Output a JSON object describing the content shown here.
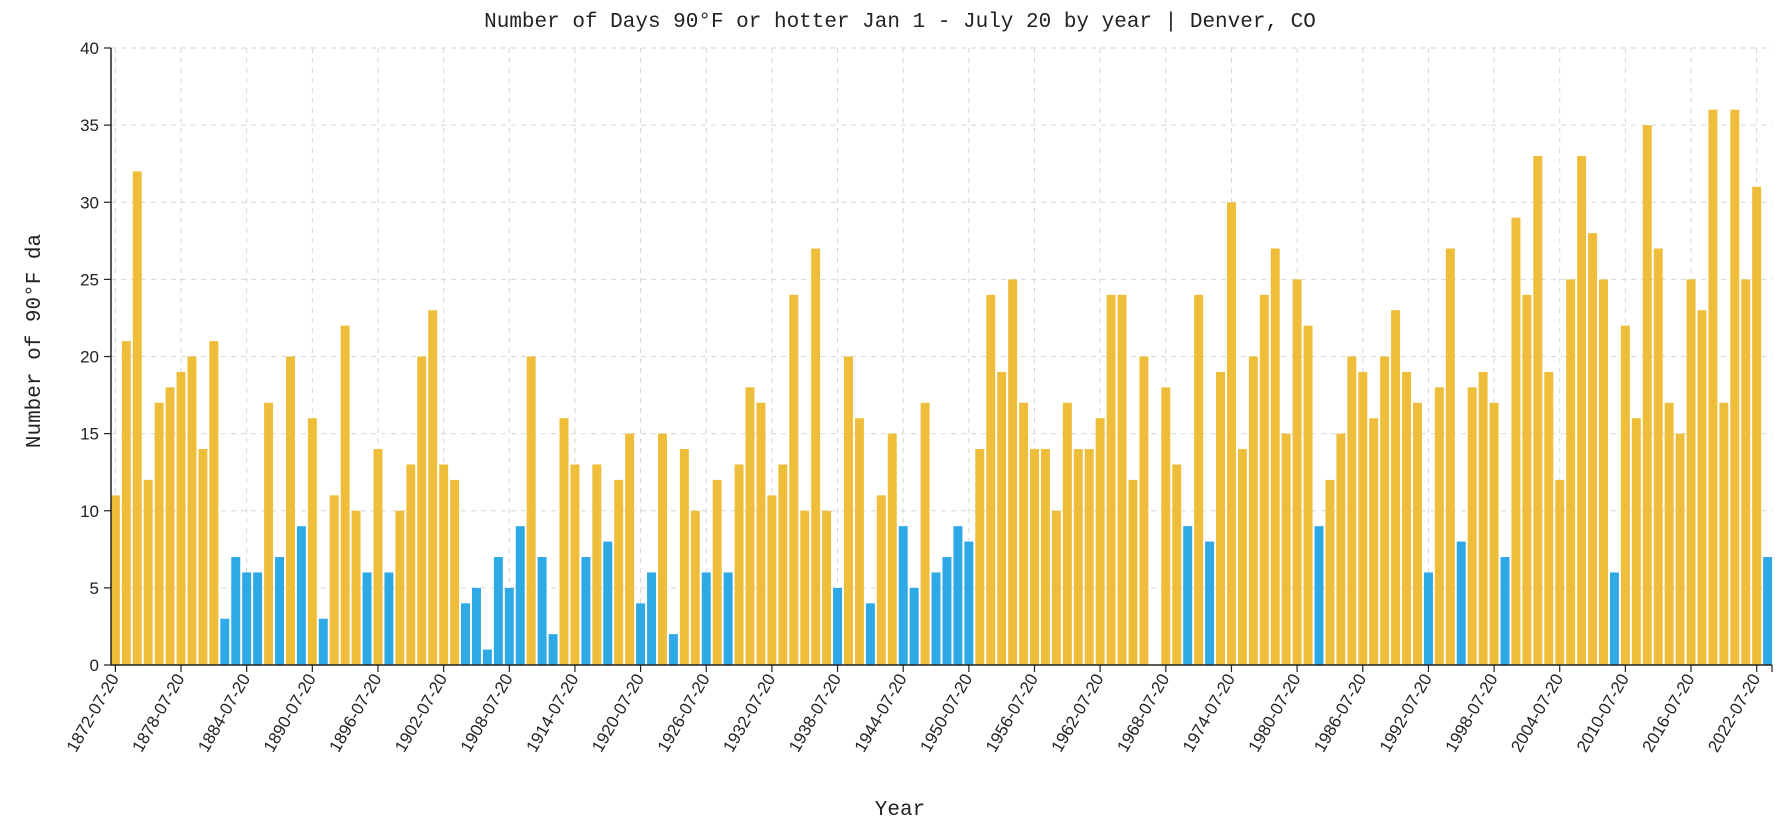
{
  "chart_data": {
    "type": "bar",
    "title": "Number of Days 90°F or hotter Jan 1 - July 20 by year | Denver, CO",
    "xlabel": "Year",
    "ylabel": "Number of 90°F da",
    "ylim": [
      0,
      40
    ],
    "yticks": [
      0,
      5,
      10,
      15,
      20,
      25,
      30,
      35,
      40
    ],
    "grid": true,
    "threshold": 10,
    "colors": {
      "above": "#EEBE3A",
      "below": "#2DAAE6"
    },
    "x_start_year": 1872,
    "xtick_labels": [
      "1872-07-20",
      "1878-07-20",
      "1884-07-20",
      "1890-07-20",
      "1896-07-20",
      "1902-07-20",
      "1908-07-20",
      "1914-07-20",
      "1920-07-20",
      "1926-07-20",
      "1932-07-20",
      "1938-07-20",
      "1944-07-20",
      "1950-07-20",
      "1956-07-20",
      "1962-07-20",
      "1968-07-20",
      "1974-07-20",
      "1980-07-20",
      "1986-07-20",
      "1992-07-20",
      "1998-07-20",
      "2004-07-20",
      "2010-07-20",
      "2016-07-20",
      "2022-07-20"
    ],
    "values": [
      11,
      21,
      32,
      12,
      17,
      18,
      19,
      20,
      14,
      21,
      3,
      7,
      6,
      6,
      17,
      7,
      20,
      9,
      16,
      3,
      11,
      22,
      10,
      6,
      14,
      6,
      10,
      13,
      20,
      23,
      13,
      12,
      4,
      5,
      1,
      7,
      5,
      9,
      20,
      7,
      2,
      16,
      13,
      7,
      13,
      8,
      12,
      15,
      4,
      6,
      15,
      2,
      14,
      10,
      6,
      12,
      6,
      13,
      18,
      17,
      11,
      13,
      24,
      10,
      27,
      10,
      5,
      20,
      16,
      4,
      11,
      15,
      9,
      5,
      17,
      6,
      7,
      9,
      8,
      14,
      24,
      19,
      25,
      17,
      14,
      14,
      10,
      17,
      14,
      14,
      16,
      24,
      24,
      12,
      20,
      0,
      18,
      13,
      9,
      24,
      8,
      19,
      30,
      14,
      20,
      24,
      27,
      15,
      25,
      22,
      9,
      12,
      15,
      20,
      19,
      16,
      20,
      23,
      19,
      17,
      6,
      18,
      27,
      8,
      18,
      19,
      17,
      7,
      29,
      24,
      33,
      19,
      12,
      25,
      33,
      28,
      25,
      6,
      22,
      16,
      35,
      27,
      17,
      15,
      25,
      23,
      36,
      17,
      36,
      25,
      31,
      7
    ]
  }
}
